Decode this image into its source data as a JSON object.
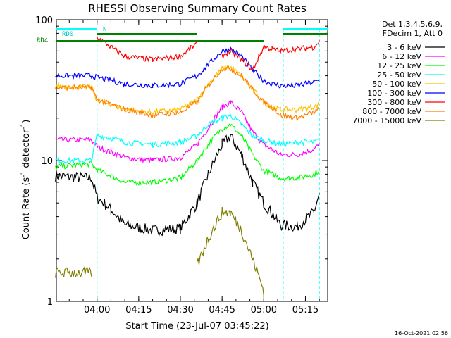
{
  "chart_data": {
    "type": "line",
    "title": "RHESSI Observing Summary Count Rates",
    "xlabel": "Start Time (23-Jul-07 03:45:22)",
    "ylabel_text": "Count Rate (s",
    "ylabel_sup": "-1",
    "ylabel_tail": " detector",
    "ylabel_sup2": "-1",
    "ylabel_end": ")",
    "yscale": "log",
    "ylim": [
      1,
      100
    ],
    "xlim": [
      "03:45:22",
      "05:23:00"
    ],
    "x_ticks": [
      "04:00",
      "04:15",
      "04:30",
      "04:45",
      "05:00",
      "05:15"
    ],
    "y_ticks": [
      "1",
      "10",
      "100"
    ],
    "legend_header": [
      "Det 1,3,4,5,6,9,",
      "FDecim 1, Att 0"
    ],
    "series": [
      {
        "name": "3 - 6 keV",
        "color": "#000000",
        "points": [
          [
            "03:45",
            "7.8"
          ],
          [
            "03:58",
            "7.5"
          ],
          [
            "04:00",
            "5.5"
          ],
          [
            "04:05",
            "4.5"
          ],
          [
            "04:10",
            "3.5"
          ],
          [
            "04:20",
            "3.2"
          ],
          [
            "04:30",
            "3.3"
          ],
          [
            "04:36",
            "5"
          ],
          [
            "04:40",
            "8"
          ],
          [
            "04:45",
            "13"
          ],
          [
            "04:48",
            "15"
          ],
          [
            "04:52",
            "11"
          ],
          [
            "04:56",
            "7"
          ],
          [
            "05:00",
            "5"
          ],
          [
            "05:03",
            "4.2"
          ],
          [
            "05:06",
            "3.5"
          ],
          [
            "05:12",
            "3.4"
          ],
          [
            "05:18",
            "4.3"
          ],
          [
            "05:20",
            "5.8"
          ]
        ]
      },
      {
        "name": "6 - 12 keV",
        "color": "#ff00ff",
        "points": [
          [
            "03:45",
            "14"
          ],
          [
            "03:58",
            "14"
          ],
          [
            "04:00",
            "12.5"
          ],
          [
            "04:05",
            "11.5"
          ],
          [
            "04:10",
            "10.5"
          ],
          [
            "04:20",
            "10"
          ],
          [
            "04:30",
            "10.5"
          ],
          [
            "04:36",
            "13"
          ],
          [
            "04:40",
            "17"
          ],
          [
            "04:45",
            "24"
          ],
          [
            "04:48",
            "26"
          ],
          [
            "04:52",
            "22"
          ],
          [
            "04:56",
            "16"
          ],
          [
            "05:00",
            "13"
          ],
          [
            "05:03",
            "12"
          ],
          [
            "05:06",
            "11"
          ],
          [
            "05:12",
            "11"
          ],
          [
            "05:18",
            "12"
          ],
          [
            "05:20",
            "13"
          ]
        ]
      },
      {
        "name": "12 - 25 keV",
        "color": "#00ff00",
        "points": [
          [
            "03:45",
            "9"
          ],
          [
            "03:58",
            "9.5"
          ],
          [
            "04:00",
            "8.5"
          ],
          [
            "04:05",
            "7.8"
          ],
          [
            "04:10",
            "7"
          ],
          [
            "04:20",
            "7"
          ],
          [
            "04:30",
            "7.5"
          ],
          [
            "04:36",
            "10"
          ],
          [
            "04:40",
            "13"
          ],
          [
            "04:45",
            "17"
          ],
          [
            "04:48",
            "18"
          ],
          [
            "04:52",
            "15"
          ],
          [
            "04:56",
            "11"
          ],
          [
            "05:00",
            "8.5"
          ],
          [
            "05:03",
            "8"
          ],
          [
            "05:06",
            "7.5"
          ],
          [
            "05:12",
            "7.5"
          ],
          [
            "05:18",
            "8"
          ],
          [
            "05:20",
            "8.5"
          ]
        ]
      },
      {
        "name": "25 - 50 keV",
        "color": "#00ffff",
        "points": [
          [
            "03:45",
            "10"
          ],
          [
            "03:58",
            "10"
          ],
          [
            "04:00",
            "15"
          ],
          [
            "04:05",
            "14.5"
          ],
          [
            "04:10",
            "13.5"
          ],
          [
            "04:20",
            "13"
          ],
          [
            "04:30",
            "13.5"
          ],
          [
            "04:36",
            "15"
          ],
          [
            "04:40",
            "18"
          ],
          [
            "04:45",
            "20"
          ],
          [
            "04:48",
            "21"
          ],
          [
            "04:52",
            "18"
          ],
          [
            "04:56",
            "15"
          ],
          [
            "05:00",
            "14"
          ],
          [
            "05:03",
            "13.5"
          ],
          [
            "05:06",
            "13"
          ],
          [
            "05:12",
            "13.5"
          ],
          [
            "05:18",
            "13.5"
          ],
          [
            "05:20",
            "14"
          ]
        ]
      },
      {
        "name": "50 - 100 keV",
        "color": "#ffbf00",
        "points": [
          [
            "03:45",
            "34"
          ],
          [
            "03:58",
            "33"
          ],
          [
            "04:00",
            "27"
          ],
          [
            "04:05",
            "25"
          ],
          [
            "04:10",
            "23"
          ],
          [
            "04:20",
            "22"
          ],
          [
            "04:30",
            "23"
          ],
          [
            "04:36",
            "27"
          ],
          [
            "04:40",
            "35"
          ],
          [
            "04:45",
            "45"
          ],
          [
            "04:48",
            "46"
          ],
          [
            "04:52",
            "40"
          ],
          [
            "04:56",
            "32"
          ],
          [
            "05:00",
            "26"
          ],
          [
            "05:03",
            "24"
          ],
          [
            "05:06",
            "23"
          ],
          [
            "05:12",
            "23"
          ],
          [
            "05:18",
            "24"
          ],
          [
            "05:20",
            "25"
          ]
        ]
      },
      {
        "name": "100 - 300 keV",
        "color": "#0000ff",
        "points": [
          [
            "03:45",
            "40"
          ],
          [
            "03:58",
            "40"
          ],
          [
            "04:00",
            "39"
          ],
          [
            "04:05",
            "37"
          ],
          [
            "04:10",
            "35"
          ],
          [
            "04:20",
            "34"
          ],
          [
            "04:30",
            "35"
          ],
          [
            "04:36",
            "40"
          ],
          [
            "04:40",
            "48"
          ],
          [
            "04:45",
            "60"
          ],
          [
            "04:48",
            "62"
          ],
          [
            "04:52",
            "55"
          ],
          [
            "04:56",
            "44"
          ],
          [
            "05:00",
            "37"
          ],
          [
            "05:03",
            "35"
          ],
          [
            "05:06",
            "34"
          ],
          [
            "05:12",
            "34"
          ],
          [
            "05:18",
            "36"
          ],
          [
            "05:20",
            "37"
          ]
        ]
      },
      {
        "name": "300 - 800 keV",
        "color": "#ff0000",
        "points": [
          [
            "03:45",
            "",
            ""
          ],
          [
            "03:58",
            ""
          ],
          [
            "04:00",
            "75"
          ],
          [
            "04:05",
            "64"
          ],
          [
            "04:10",
            "55"
          ],
          [
            "04:20",
            "52"
          ],
          [
            "04:30",
            "55"
          ],
          [
            "04:36",
            "68"
          ],
          [
            "04:40",
            ""
          ],
          [
            "04:45",
            "55"
          ],
          [
            "04:48",
            "60"
          ],
          [
            "04:52",
            "52"
          ],
          [
            "04:56",
            "44"
          ],
          [
            "05:00",
            "64"
          ],
          [
            "05:03",
            "62"
          ],
          [
            "05:06",
            "60"
          ],
          [
            "05:12",
            "62"
          ],
          [
            "05:18",
            "64"
          ],
          [
            "05:20",
            "70"
          ]
        ]
      },
      {
        "name": "800 - 7000 keV",
        "color": "#ff8000",
        "points": [
          [
            "03:45",
            "33"
          ],
          [
            "03:58",
            "33"
          ],
          [
            "04:00",
            "27"
          ],
          [
            "04:05",
            "25"
          ],
          [
            "04:10",
            "23"
          ],
          [
            "04:20",
            "21"
          ],
          [
            "04:30",
            "22"
          ],
          [
            "04:36",
            "26"
          ],
          [
            "04:40",
            "34"
          ],
          [
            "04:45",
            "45"
          ],
          [
            "04:48",
            "45"
          ],
          [
            "04:52",
            "40"
          ],
          [
            "04:56",
            "32"
          ],
          [
            "05:00",
            "26"
          ],
          [
            "05:03",
            "24"
          ],
          [
            "05:06",
            "21"
          ],
          [
            "05:12",
            "20"
          ],
          [
            "05:18",
            "22"
          ],
          [
            "05:20",
            "23"
          ]
        ]
      },
      {
        "name": "7000 - 15000 keV",
        "color": "#808000",
        "points": [
          [
            "03:45",
            "1.6"
          ],
          [
            "03:58",
            "1.6"
          ],
          [
            "04:00",
            ""
          ],
          [
            "04:36",
            "1.8"
          ],
          [
            "04:40",
            "2.8"
          ],
          [
            "04:45",
            "4.3"
          ],
          [
            "04:48",
            "4.3"
          ],
          [
            "04:52",
            "3.2"
          ],
          [
            "04:56",
            "2"
          ],
          [
            "05:00",
            "1.2"
          ]
        ]
      }
    ],
    "bars": [
      {
        "label": "RD0",
        "color": "#00ffff",
        "kind": "top"
      },
      {
        "label": "N",
        "color": "#00ffff",
        "kind": "top"
      },
      {
        "label": "RD4",
        "color": "#008000",
        "kind": "flag"
      }
    ],
    "timestamp": "16-Oct-2021 02:56",
    "grid": false,
    "legend": "right"
  }
}
